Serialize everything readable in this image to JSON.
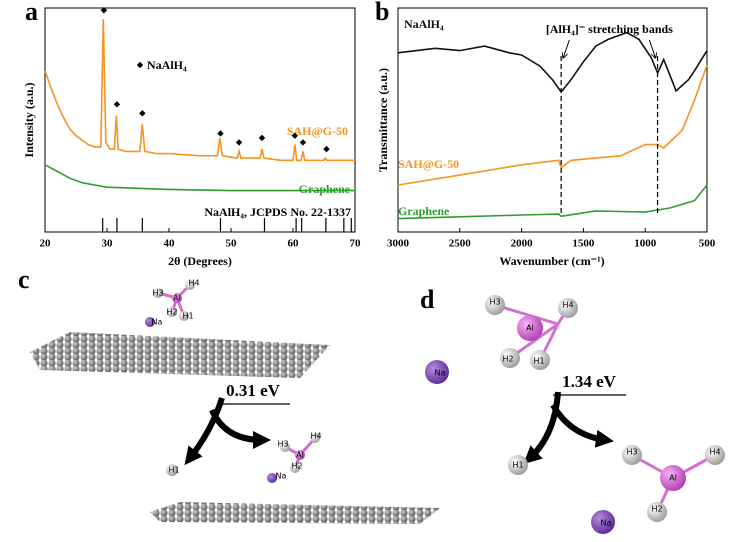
{
  "chart_data": [
    {
      "type": "line",
      "panel_label": "a",
      "ylabel": "Intensity (a.u.)",
      "xlabel": "2θ (Degrees)",
      "xlim": [
        20,
        70
      ],
      "xticks": [
        20,
        30,
        40,
        50,
        60,
        70
      ],
      "ylim": [
        0,
        100
      ],
      "series": [
        {
          "name": "SAH@G-50",
          "color": "#f7931e",
          "x": [
            20,
            21,
            22,
            23,
            24,
            25,
            26,
            27,
            28,
            29,
            29.4,
            29.8,
            30.5,
            31.2,
            31.5,
            31.8,
            33,
            35.3,
            35.7,
            36.1,
            38,
            40,
            45,
            47.8,
            48.2,
            48.6,
            51,
            51.3,
            51.6,
            54.7,
            55,
            55.3,
            58,
            60,
            60.3,
            60.6,
            61.3,
            61.6,
            61.9,
            65,
            65.2,
            65.5,
            70
          ],
          "values": [
            72,
            64,
            57,
            51,
            46,
            43,
            41,
            39,
            38,
            38,
            95,
            40,
            37,
            37,
            52,
            37,
            36,
            36,
            48,
            36,
            35,
            35,
            34,
            34,
            42,
            34,
            33,
            36,
            33,
            33,
            37,
            33,
            32,
            32,
            39,
            32,
            32,
            36,
            32,
            32,
            33,
            32,
            32
          ]
        },
        {
          "name": "Graphene",
          "color": "#2e9e2e",
          "x": [
            20,
            22,
            24,
            26,
            28,
            30,
            35,
            40,
            50,
            60,
            70
          ],
          "values": [
            30,
            27,
            24,
            22,
            21,
            20,
            19.5,
            19,
            18.5,
            18.5,
            18.5
          ]
        }
      ],
      "peak_markers": {
        "name": "NaAlH₄",
        "x": [
          29.5,
          31.6,
          35.7,
          48.3,
          51.3,
          55.0,
          60.3,
          61.6,
          65.4
        ],
        "values": [
          99,
          57,
          53,
          44,
          40,
          42,
          43,
          40,
          37
        ]
      },
      "reference": {
        "label": "NaAlH₄, JCPDS No. 22-1337",
        "x": [
          29.3,
          31.6,
          35.7,
          48.3,
          55.4,
          60.5,
          61.4,
          65.3,
          68.2,
          69.4
        ]
      }
    },
    {
      "type": "line",
      "panel_label": "b",
      "ylabel": "Transmittance (a.u.)",
      "xlabel": "Wavenumber (cm⁻¹)",
      "xlim": [
        3000,
        500
      ],
      "xticks": [
        3000,
        2500,
        2000,
        1500,
        1000,
        500
      ],
      "ylim": [
        0,
        100
      ],
      "series": [
        {
          "name": "NaAlH₄",
          "color": "#111111",
          "x": [
            3000,
            2700,
            2500,
            2300,
            2100,
            2000,
            1850,
            1750,
            1680,
            1600,
            1500,
            1400,
            1300,
            1150,
            1050,
            950,
            900,
            850,
            800,
            750,
            650,
            600,
            500
          ],
          "values": [
            80,
            82,
            81,
            83,
            80,
            79,
            74,
            68,
            62.5,
            68,
            76,
            83,
            86,
            89,
            86,
            77.7,
            71,
            77,
            70,
            63,
            68,
            72,
            81
          ]
        },
        {
          "name": "SAH@G-50",
          "color": "#f7931e",
          "x": [
            3000,
            2500,
            2000,
            1700,
            1680,
            1600,
            1400,
            1200,
            1000,
            900,
            850,
            700,
            600,
            500
          ],
          "values": [
            21,
            25.4,
            30,
            32,
            28.6,
            32,
            33,
            34,
            39,
            39,
            37.5,
            45.5,
            59,
            74.5
          ]
        },
        {
          "name": "Graphene",
          "color": "#2e9e2e",
          "x": [
            3000,
            2500,
            2000,
            1700,
            1680,
            1400,
            1000,
            800,
            600,
            500
          ],
          "values": [
            6,
            6.8,
            7.6,
            8,
            7,
            9.4,
            8.9,
            10.7,
            14,
            21
          ]
        }
      ],
      "marked_wavenumbers": [
        1680,
        900
      ],
      "annotation": "[AlH₄]⁻ stretching bands"
    }
  ],
  "diagrams": [
    {
      "panel_label": "c",
      "energy": "0.31 eV",
      "before": {
        "H3": "H3",
        "H4": "H4",
        "Al": "Al",
        "H2": "H2",
        "H1": "H1",
        "Na": "Na"
      },
      "after": {
        "H1": "H1",
        "H3": "H3",
        "H4": "H4",
        "Al": "Al",
        "H2": "H2",
        "Na": "Na"
      }
    },
    {
      "panel_label": "d",
      "energy": "1.34 eV",
      "before": {
        "H3": "H3",
        "H4": "H4",
        "Al": "Al",
        "H2": "H2",
        "H1": "H1",
        "Na": "Na"
      },
      "after": {
        "H1": "H1",
        "H3": "H3",
        "H4": "H4",
        "Al": "Al",
        "H2": "H2",
        "Na": "Na"
      }
    }
  ]
}
